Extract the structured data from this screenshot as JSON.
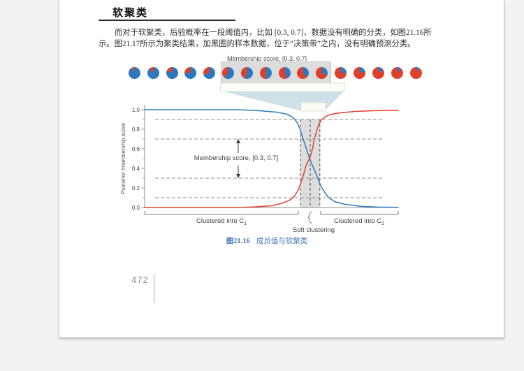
{
  "page": {
    "heading": "软聚类",
    "paragraph_line1": "而对于软聚类，后验概率在一段阈值内，比如 [0.3, 0.7]，数据没有明确的分类，如图21.16所",
    "paragraph_line2": "示。图21.17所示为聚类结果，加黑圈的样本数据，位于“决策带”之内，没有明确预测分类。",
    "page_number": "472",
    "caption_prefix": "图21.16",
    "caption_text": "成员值与软聚类"
  },
  "colors": {
    "blue": "#2d7dbb",
    "red": "#e2432d",
    "pie_blue": "#2b7abf",
    "pie_red": "#e0402a",
    "funnel": "#cde1e6",
    "band_fill": "#d9d9d9",
    "dashed": "#8f8f8f",
    "band_dash": "#4d4d4d",
    "axis": "#8c8c8c",
    "tick_text": "#444444",
    "bracket": "#777777"
  },
  "chart_data": {
    "type": "line",
    "title_top": "Membership score, [0.3, 0.7]",
    "ylabel": "Posterior /membership score",
    "ylim": [
      0,
      1
    ],
    "yticks": [
      0.0,
      0.2,
      0.4,
      0.6,
      0.8,
      1.0
    ],
    "minor_yticks": [
      0.1,
      0.3,
      0.5,
      0.7,
      0.9
    ],
    "dashed_levels": [
      0.1,
      0.3,
      0.7,
      0.9
    ],
    "grid": "dashed-horizontal-only",
    "legend": "none",
    "annotation": "Membership score, [0.3, 0.7]",
    "annotation_range": [
      0.3,
      0.7
    ],
    "band_x": [
      0.614,
      0.691
    ],
    "band_center": 0.653,
    "band_top": 0.9,
    "bracket_left": {
      "text": "Clustered into C",
      "sub": "1"
    },
    "bracket_right": {
      "text": "Clustered into C",
      "sub": "2"
    },
    "bracket_left_span": [
      0.0,
      0.606
    ],
    "bracket_right_span": [
      0.694,
      1.0
    ],
    "soft_label": "Soft clustering",
    "series": [
      {
        "name": "membership-score-cluster-C1",
        "color": "#2d7dbb",
        "points": [
          [
            0,
            1.0
          ],
          [
            0.37,
            1.0
          ],
          [
            0.45,
            0.99
          ],
          [
            0.52,
            0.975
          ],
          [
            0.56,
            0.955
          ],
          [
            0.585,
            0.92
          ],
          [
            0.6,
            0.875
          ],
          [
            0.613,
            0.8
          ],
          [
            0.625,
            0.7
          ],
          [
            0.638,
            0.6
          ],
          [
            0.648,
            0.52
          ],
          [
            0.652,
            0.49
          ],
          [
            0.66,
            0.44
          ],
          [
            0.675,
            0.35
          ],
          [
            0.685,
            0.28
          ],
          [
            0.695,
            0.22
          ],
          [
            0.71,
            0.155
          ],
          [
            0.724,
            0.105
          ],
          [
            0.75,
            0.06
          ],
          [
            0.79,
            0.032
          ],
          [
            0.85,
            0.013
          ],
          [
            0.92,
            0.004
          ],
          [
            1,
            0.002
          ]
        ]
      },
      {
        "name": "membership-score-cluster-C2",
        "color": "#e2432d",
        "points": [
          [
            0,
            0.0
          ],
          [
            0.36,
            0.0
          ],
          [
            0.43,
            0.006
          ],
          [
            0.5,
            0.018
          ],
          [
            0.545,
            0.045
          ],
          [
            0.575,
            0.08
          ],
          [
            0.59,
            0.115
          ],
          [
            0.605,
            0.175
          ],
          [
            0.617,
            0.26
          ],
          [
            0.628,
            0.35
          ],
          [
            0.638,
            0.44
          ],
          [
            0.652,
            0.51
          ],
          [
            0.662,
            0.6
          ],
          [
            0.669,
            0.7
          ],
          [
            0.678,
            0.78
          ],
          [
            0.686,
            0.845
          ],
          [
            0.697,
            0.895
          ],
          [
            0.71,
            0.925
          ],
          [
            0.73,
            0.95
          ],
          [
            0.77,
            0.968
          ],
          [
            0.83,
            0.982
          ],
          [
            0.91,
            0.99
          ],
          [
            1,
            0.993
          ]
        ]
      }
    ],
    "pies": {
      "red_fractions": [
        0.08,
        0.13,
        0.18,
        0.24,
        0.3,
        0.38,
        0.44,
        0.5,
        0.56,
        0.62,
        0.68,
        0.75,
        0.8,
        0.85,
        0.89,
        0.92
      ],
      "boxed_indices": [
        5,
        10
      ]
    }
  }
}
